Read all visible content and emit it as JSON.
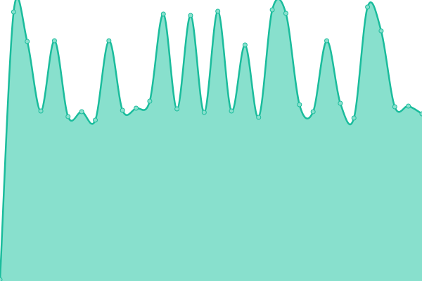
{
  "chart_data": {
    "type": "area",
    "values": [
      2,
      383,
      341,
      242,
      342,
      234,
      241,
      229,
      342,
      243,
      246,
      256,
      380,
      245,
      378,
      240,
      384,
      242,
      336,
      233,
      386,
      381,
      251,
      241,
      342,
      253,
      232,
      390,
      356,
      248,
      249,
      238
    ],
    "color": "#1abc9c",
    "fill": "#88e0cd",
    "ylim": [
      0,
      400
    ]
  }
}
